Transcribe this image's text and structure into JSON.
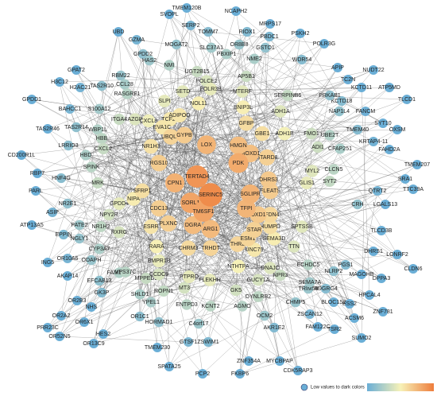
{
  "nodes": [
    "TMEM120B",
    "NCAPH2",
    "SVOPL",
    "MRPS17",
    "PSKH2",
    "UBD",
    "GZMA",
    "SERP2",
    "TOMM7",
    "RIOX1",
    "PBDC1",
    "POLR3G",
    "GPDD2",
    "MOGAT2",
    "SLC37A1",
    "PBXIP1",
    "OR8B8",
    "GSTO1",
    "NME2",
    "WDR54",
    "NUDT22",
    "GPAT2",
    "HAS2",
    "NMI",
    "H3C12",
    "H2AC21",
    "TAS2R10",
    "CCL28",
    "RBM22",
    "GPDD1",
    "BAHCC1",
    "S100A12",
    "ITGA4",
    "TAS2R14",
    "WBP1L",
    "LRRIO3",
    "CD200R1L",
    "TAS2R46",
    "RBP7",
    "HNF4G",
    "PARL",
    "NR2E1",
    "ASIP",
    "EPPIN",
    "ATP13A5",
    "PATE2",
    "NGLY1",
    "ING5",
    "OR10A6",
    "ODAPH",
    "AKAP14",
    "EFCAB13",
    "GK3P",
    "OR2B3",
    "NHS",
    "OR6X1",
    "HES2",
    "OR2A2",
    "PRR23C",
    "OR52N5",
    "OR13C9",
    "VPS37C",
    "TMEM230",
    "GTSF1",
    "ZSWIM1",
    "SPATA25",
    "PCP2",
    "FKBP6",
    "ZNF354A",
    "MYCBPAP",
    "CDK5RAP3",
    "SUMO2",
    "ACSM6",
    "ZNF781",
    "TSR2",
    "ESS2",
    "FAM122C",
    "AKR1E2",
    "ZSCAN12",
    "BLOC1S2",
    "OCM2",
    "C4orf17",
    "HORMAD1",
    "OR1C1",
    "YPEL1",
    "ENTPD3",
    "KCNT2",
    "AGMO",
    "DYNLRB2",
    "CHMP5",
    "TRIM59",
    "ADGRG4",
    "HPCAL4",
    "NLRP2",
    "MAGOHB",
    "DPPA3",
    "CLDN6",
    "LONRF2",
    "DHRS1",
    "PGS1",
    "ECHDC5",
    "SEMA7A",
    "TLCD1",
    "ATP5MD",
    "OXSM",
    "TMEM207",
    "SRA1",
    "TTC39A",
    "LGALS13",
    "QTRT2",
    "FAHD2A",
    "KRTAP4-11",
    "FANCM",
    "SYT10",
    "TMEM40",
    "KCTD18",
    "KCTD11",
    "TC2N",
    "APIP",
    "PRKAB1",
    "NAP1L4",
    "UBE2T",
    "CFAP251",
    "FMO1",
    "ADI1",
    "CLCN5",
    "MYL2",
    "SYT2",
    "GLIS1",
    "CRH",
    "TLCD3B",
    "LOX",
    "ADIPOQ",
    "BNIP3L",
    "EVA1C",
    "HMGN",
    "GBE1",
    "PDK",
    "MOXD1",
    "STARD8",
    "TERTAD4",
    "GYPB",
    "UBQLN",
    "CPN1",
    "NR1H3",
    "RGS10",
    "SERINC5",
    "SORL1",
    "SGLIPR",
    "TFPI",
    "OXD1",
    "DHRS3",
    "CDC13",
    "PLXNC",
    "DGRA",
    "TM6SF1",
    "ARG1",
    "ESM1",
    "SEMA3D",
    "STAR",
    "TRHDT",
    "THRL",
    "UNC79",
    "CHRM3",
    "BMPR1B",
    "RARA",
    "ESRR",
    "NR1H2",
    "NPY2R",
    "RXRG",
    "CYP3A7",
    "GPDD4",
    "MRK",
    "HBD",
    "CXCL2",
    "SPINK",
    "HBB",
    "AZGP",
    "CXCL8",
    "NIPA",
    "SFRP1",
    "FAM133B",
    "MPPED2",
    "CCDC9",
    "ROPN1",
    "SHLD1",
    "MT3",
    "PTPRO",
    "FLEKHH",
    "NTHTPA",
    "GK5",
    "GUCY1A",
    "NPR3",
    "DNAJC",
    "UGT2B15",
    "POLCE2",
    "POLR3B",
    "SLPI",
    "NOL11",
    "SETD",
    "RASGRF1",
    "TCF20",
    "MTERF",
    "AP5B1",
    "GFBP",
    "SERPINB6",
    "ADH1A",
    "ADH1B",
    "SPTSSB",
    "TTN",
    "FLEATS",
    "PFDN4",
    "HUMPD"
  ],
  "legend": {
    "label": "Low values to dark colors"
  }
}
